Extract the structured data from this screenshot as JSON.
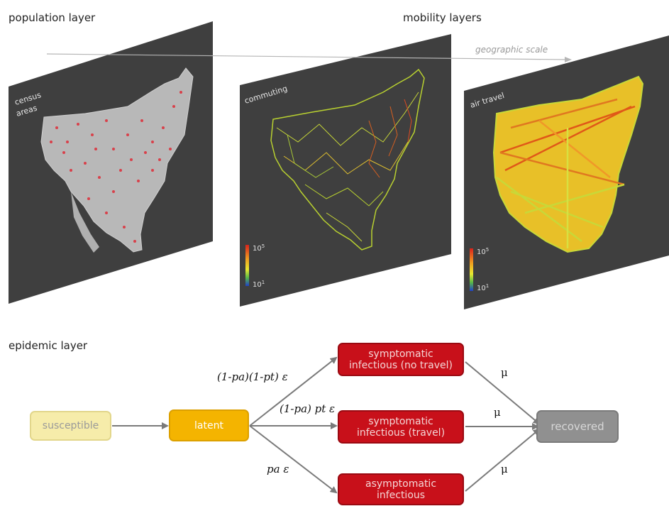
{
  "headings": {
    "population": "population layer",
    "mobility": "mobility layers",
    "epidemic": "epidemic layer"
  },
  "geographic_scale": "geographic scale",
  "panels": {
    "census": [
      "census",
      "areas"
    ],
    "commuting": "commuting",
    "air": "air travel",
    "colorbar_top": "10",
    "colorbar_top_exp": "5",
    "colorbar_bottom": "10",
    "colorbar_bottom_exp": "1"
  },
  "compartments": {
    "susceptible": "susceptible",
    "latent": "latent",
    "symptomatic_no_travel": [
      "symptomatic",
      "infectious (no travel)"
    ],
    "symptomatic_travel": [
      "symptomatic",
      "infectious (travel)"
    ],
    "asymptomatic": [
      "asymptomatic",
      "infectious"
    ],
    "recovered": "recovered"
  },
  "rates": {
    "to_no_travel": "(1-pa)(1-pt) ε",
    "to_travel": "(1-pa) pt ε",
    "to_asymptomatic": "pa ε",
    "mu": "μ"
  },
  "colors": {
    "panel": "#3f3f3f",
    "susceptible": "#f6ecaa",
    "latent": "#f4b400",
    "infectious": "#c8101a",
    "recovered": "#909090"
  }
}
